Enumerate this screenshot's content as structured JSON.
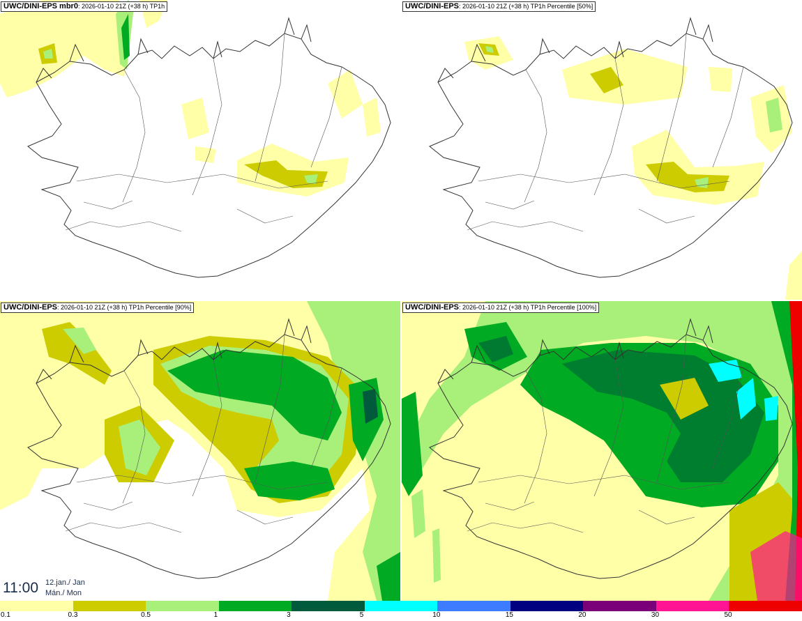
{
  "panels": [
    {
      "model": "UWC/DINI-EPS mbr0",
      "info": ": 2026-01-10 21Z (+38 h) TP1h"
    },
    {
      "model": "UWC/DINI-EPS",
      "info": ": 2026-01-10 21Z (+38 h) TP1h Percentile [50%]"
    },
    {
      "model": "UWC/DINI-EPS",
      "info": ": 2026-01-10 21Z (+38 h) TP1h Percentile [90%]"
    },
    {
      "model": "UWC/DINI-EPS",
      "info": ": 2026-01-10 21Z (+38 h) TP1h Percentile [100%]"
    }
  ],
  "valid_time": {
    "time": "11:00",
    "date_line1": "12.jan./ Jan",
    "date_line2": "Mán./ Mon"
  },
  "legend": {
    "labels": [
      "0.1",
      "0.3",
      "0.5",
      "1",
      "3",
      "5",
      "10",
      "15",
      "20",
      "30",
      "50"
    ],
    "colors": [
      "#ffffa8",
      "#cccc00",
      "#a8f07a",
      "#00aa22",
      "#005a3c",
      "#00ffff",
      "#3d7cff",
      "#000080",
      "#7a007a",
      "#ff1493",
      "#ee0000"
    ]
  }
}
